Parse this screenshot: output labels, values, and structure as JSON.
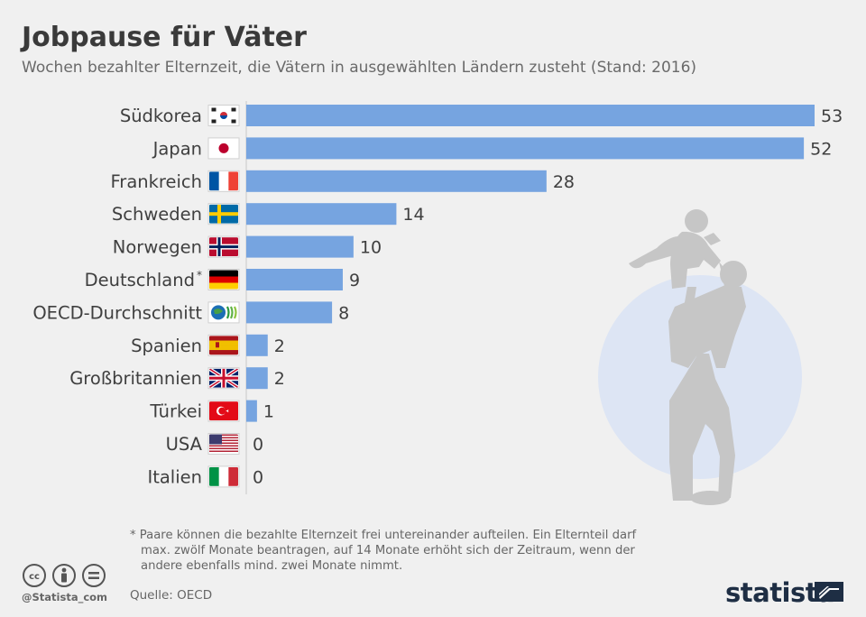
{
  "title": "Jobpause für Väter",
  "subtitle": "Wochen bezahlter Elternzeit, die Vätern in ausgewählten Ländern zusteht (Stand: 2016)",
  "chart_data": {
    "type": "bar",
    "orientation": "horizontal",
    "title": "Jobpause für Väter",
    "subtitle": "Wochen bezahlter Elternzeit, die Vätern in ausgewählten Ländern zusteht (Stand: 2016)",
    "unit": "Wochen",
    "xlim": [
      0,
      53
    ],
    "bar_color": "#76a4e0",
    "categories": [
      "Südkorea",
      "Japan",
      "Frankreich",
      "Schweden",
      "Norwegen",
      "Deutschland",
      "OECD-Durchschnitt",
      "Spanien",
      "Großbritannien",
      "Türkei",
      "USA",
      "Italien"
    ],
    "values": [
      53,
      52,
      28,
      14,
      10,
      9,
      8,
      2,
      2,
      1,
      0,
      0
    ],
    "flags": [
      "kr-flag-icon",
      "jp-flag-icon",
      "fr-flag-icon",
      "se-flag-icon",
      "no-flag-icon",
      "de-flag-icon",
      "oecd-logo-icon",
      "es-flag-icon",
      "gb-flag-icon",
      "tr-flag-icon",
      "us-flag-icon",
      "it-flag-icon"
    ],
    "footnote_markers": [
      "",
      "",
      "",
      "",
      "",
      "*",
      "",
      "",
      "",
      "",
      "",
      ""
    ]
  },
  "footnote": {
    "lines": [
      "* Paare können die bezahlte Elternzeit frei untereinander aufteilen. Ein Elternteil darf",
      "max. zwölf Monate beantragen, auf 14 Monate erhöht sich der Zeitraum, wenn der",
      "andere ebenfalls mind. zwei Monate nimmt."
    ]
  },
  "source": "Quelle: OECD",
  "handle": "@Statista_com",
  "brand": "statista",
  "license_icons": [
    "cc-icon",
    "by-icon",
    "nd-icon"
  ]
}
